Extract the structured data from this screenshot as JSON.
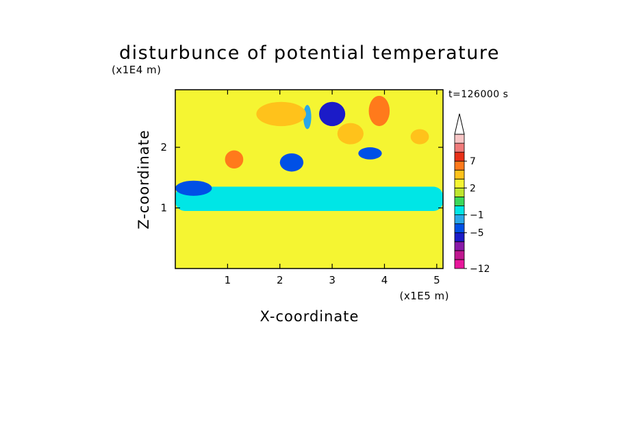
{
  "chart_data": {
    "type": "heatmap",
    "title": "disturbunce of potential temperature",
    "xlabel": "X-coordinate",
    "ylabel": "Z-coordinate",
    "x_unit": "(x1E5 m)",
    "y_unit": "(x1E4 m)",
    "time_label": "t=126000 s",
    "xlim": [
      0,
      5.12
    ],
    "ylim": [
      0,
      2.95
    ],
    "x_ticks": [
      {
        "value": 1,
        "label": "1"
      },
      {
        "value": 2,
        "label": "2"
      },
      {
        "value": 3,
        "label": "3"
      },
      {
        "value": 4,
        "label": "4"
      },
      {
        "value": 5,
        "label": "5"
      }
    ],
    "y_ticks": [
      {
        "value": 1,
        "label": "1"
      },
      {
        "value": 2,
        "label": "2"
      }
    ],
    "colorbar": {
      "levels": [
        -12,
        -11,
        -9,
        -7,
        -5,
        -3,
        -1,
        0,
        1,
        2,
        3,
        5,
        7,
        9,
        11
      ],
      "colors": [
        "#e8179b",
        "#c0188f",
        "#8a1aa8",
        "#1b1bc8",
        "#0050e6",
        "#2aa7e8",
        "#00e6e6",
        "#3cd85a",
        "#bfe62e",
        "#f5f532",
        "#ffc21b",
        "#ff7a1b",
        "#e83018",
        "#f07a7a",
        "#f7c5c5"
      ],
      "labels": [
        {
          "value": 7,
          "label": "7"
        },
        {
          "value": 2,
          "label": "2"
        },
        {
          "value": -1,
          "label": "−1"
        },
        {
          "value": -5,
          "label": "−5"
        },
        {
          "value": -12,
          "label": "−12"
        }
      ]
    },
    "regions": [
      {
        "feature": "lower warm layer",
        "x": [
          0,
          5.12
        ],
        "z": [
          0.05,
          0.85
        ],
        "value": 2.5
      },
      {
        "feature": "cool band",
        "x": [
          0,
          5.12
        ],
        "z": [
          0.95,
          1.35
        ],
        "value": -1.0
      },
      {
        "feature": "cold lobe",
        "x": [
          2.75,
          3.25
        ],
        "z": [
          2.35,
          2.75
        ],
        "value": -6.0
      },
      {
        "feature": "cold lobe",
        "x": [
          2.45,
          2.6
        ],
        "z": [
          2.3,
          2.7
        ],
        "value": -3.0
      },
      {
        "feature": "cold lobe",
        "x": [
          2.0,
          2.45
        ],
        "z": [
          1.6,
          1.9
        ],
        "value": -5.0
      },
      {
        "feature": "cold lobe",
        "x": [
          3.5,
          3.95
        ],
        "z": [
          1.8,
          2.0
        ],
        "value": -5.0
      },
      {
        "feature": "cold lobe",
        "x": [
          0,
          0.7
        ],
        "z": [
          1.2,
          1.45
        ],
        "value": -5.0
      },
      {
        "feature": "warm lobe",
        "x": [
          3.7,
          4.1
        ],
        "z": [
          2.35,
          2.85
        ],
        "value": 5.0
      },
      {
        "feature": "warm lobe",
        "x": [
          3.1,
          3.6
        ],
        "z": [
          2.05,
          2.4
        ],
        "value": 3.0
      },
      {
        "feature": "warm lobe",
        "x": [
          1.55,
          2.5
        ],
        "z": [
          2.35,
          2.75
        ],
        "value": 3.0
      },
      {
        "feature": "warm lobe",
        "x": [
          0.95,
          1.3
        ],
        "z": [
          1.65,
          1.95
        ],
        "value": 5.0
      },
      {
        "feature": "warm lobe",
        "x": [
          4.5,
          4.85
        ],
        "z": [
          2.05,
          2.3
        ],
        "value": 3.0
      }
    ]
  }
}
